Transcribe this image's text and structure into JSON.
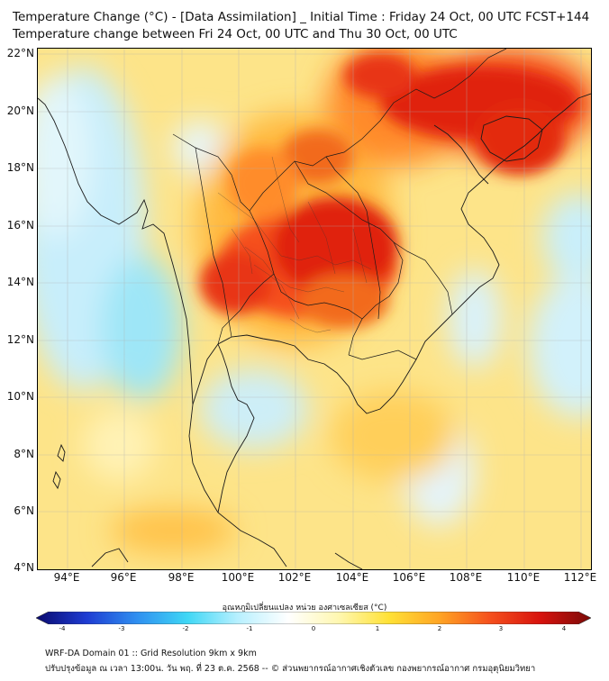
{
  "title": {
    "line1": "Temperature Change (°C) - [Data Assimilation] _ Initial Time : Friday 24 Oct, 00 UTC FCST+144",
    "line2": "Temperature change between Fri 24 Oct, 00 UTC and Thu 30 Oct, 00 UTC"
  },
  "axes": {
    "lat_labels": [
      "22°N",
      "20°N",
      "18°N",
      "16°N",
      "14°N",
      "12°N",
      "10°N",
      "8°N",
      "6°N",
      "4°N"
    ],
    "lon_labels": [
      "94°E",
      "96°E",
      "98°E",
      "100°E",
      "102°E",
      "104°E",
      "106°E",
      "108°E",
      "110°E",
      "112°E"
    ]
  },
  "colorbar": {
    "title": "อุณหภูมิเปลี่ยนแปลง หน่วย องศาเซลเซียส (°C)",
    "ticks": [
      "-4",
      "-3",
      "-2",
      "-1",
      "0",
      "1",
      "2",
      "3",
      "4"
    ],
    "colors": [
      "#0a0a6e",
      "#1e3cd2",
      "#2f8ff0",
      "#3fd7f5",
      "#b8f0ff",
      "#ffffff",
      "#fff7b0",
      "#ffe135",
      "#ffa424",
      "#f5501d",
      "#d7120d",
      "#7a0a08"
    ]
  },
  "footer": {
    "line1": "WRF-DA Domain 01 :: Grid Resolution 9km x 9km",
    "line2": "ปรับปรุงข้อมูล ณ เวลา 13:00น. วัน พฤ. ที่ 23 ต.ค. 2568 -- © ส่วนพยากรณ์อากาศเชิงตัวเลข กองพยากรณ์อากาศ กรมอุตุนิยมวิทยา"
  }
}
